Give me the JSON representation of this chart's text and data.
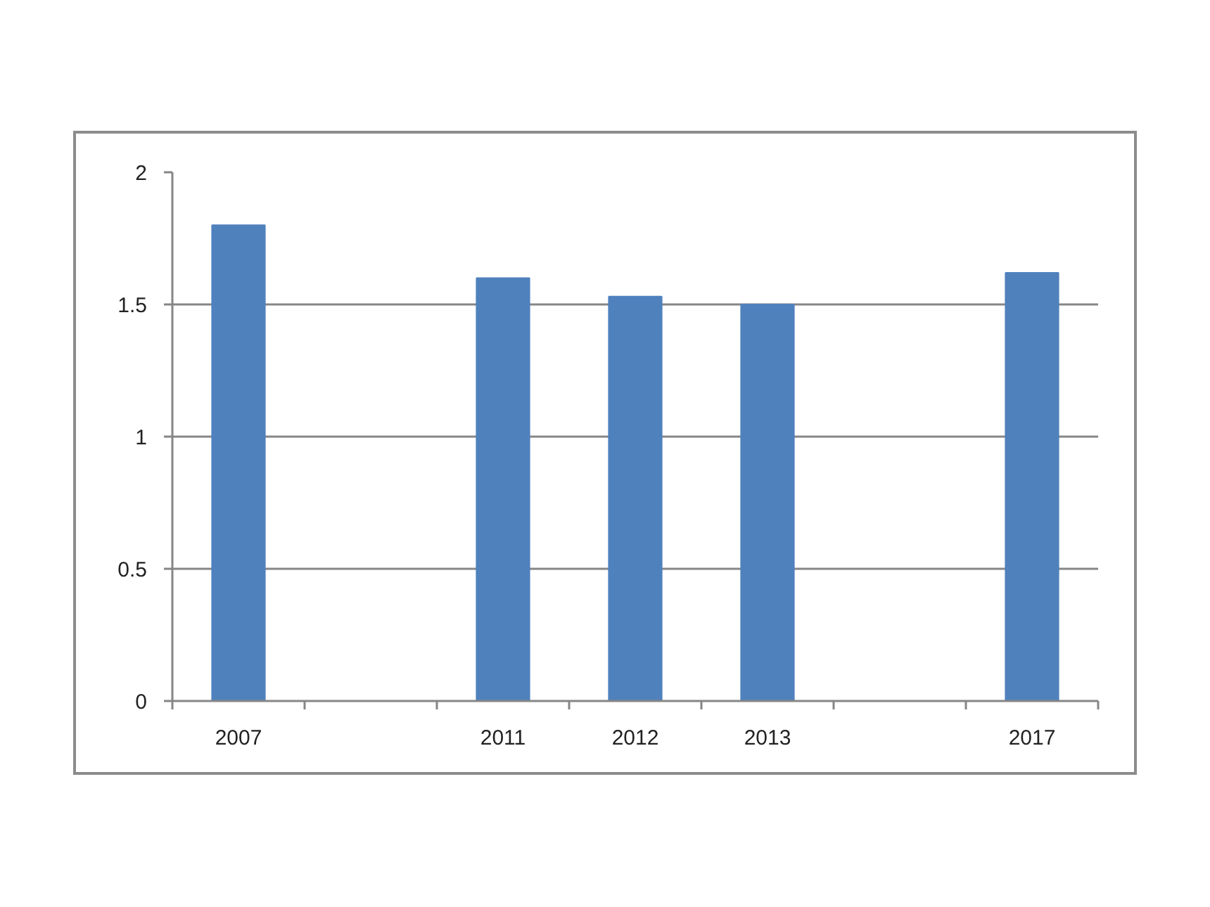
{
  "chart_data": {
    "type": "bar",
    "categories": [
      "2007",
      null,
      "2011",
      "2012",
      "2013",
      null,
      "2017"
    ],
    "values": [
      1.8,
      null,
      1.6,
      1.53,
      1.5,
      null,
      1.62
    ],
    "color": "#4f81bd",
    "ylim": [
      0,
      2
    ],
    "yticks": [
      0,
      0.5,
      1,
      1.5,
      2
    ],
    "grid": "y"
  }
}
